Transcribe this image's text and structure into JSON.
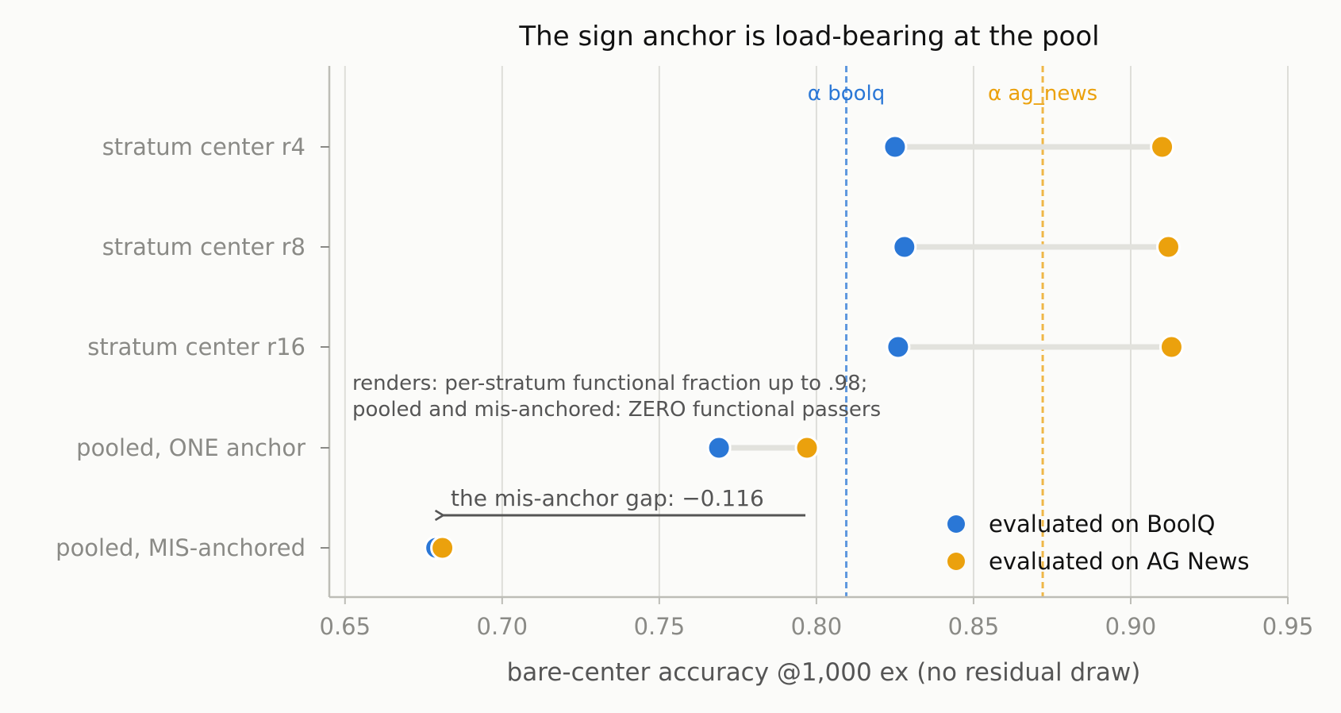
{
  "chart_data": {
    "type": "dumbbell",
    "title": "The sign anchor is load-bearing at the pool",
    "xlabel": "bare-center accuracy @1,000 ex (no residual draw)",
    "ylabel": "",
    "xlim": [
      0.645,
      0.95
    ],
    "xticks": [
      "0.65",
      "0.70",
      "0.75",
      "0.80",
      "0.85",
      "0.90",
      "0.95"
    ],
    "grid": "vertical",
    "categories": [
      "stratum center r4",
      "stratum center r8",
      "stratum center r16",
      "pooled, ONE anchor",
      "pooled, MIS-anchored"
    ],
    "series": [
      {
        "name": "evaluated on BoolQ",
        "color": "#2a77d6",
        "values": [
          0.825,
          0.828,
          0.826,
          0.769,
          0.679
        ]
      },
      {
        "name": "evaluated on AG News",
        "color": "#eba10d",
        "values": [
          0.91,
          0.912,
          0.913,
          0.797,
          0.681
        ]
      }
    ],
    "reference_lines": [
      {
        "label": "α boolq",
        "x": 0.8095,
        "color": "#2a77d6"
      },
      {
        "label": "α ag_news",
        "x": 0.872,
        "color": "#eba10d"
      }
    ],
    "annotations": {
      "note_line1": "renders: per-stratum functional fraction up to .98;",
      "note_line2": "pooled and mis-anchored: ZERO functional passers",
      "gap_label": "the mis-anchor gap: −0.116",
      "gap_arrow_from": 0.797,
      "gap_arrow_to": 0.681
    },
    "legend_position": "bottom-right"
  }
}
